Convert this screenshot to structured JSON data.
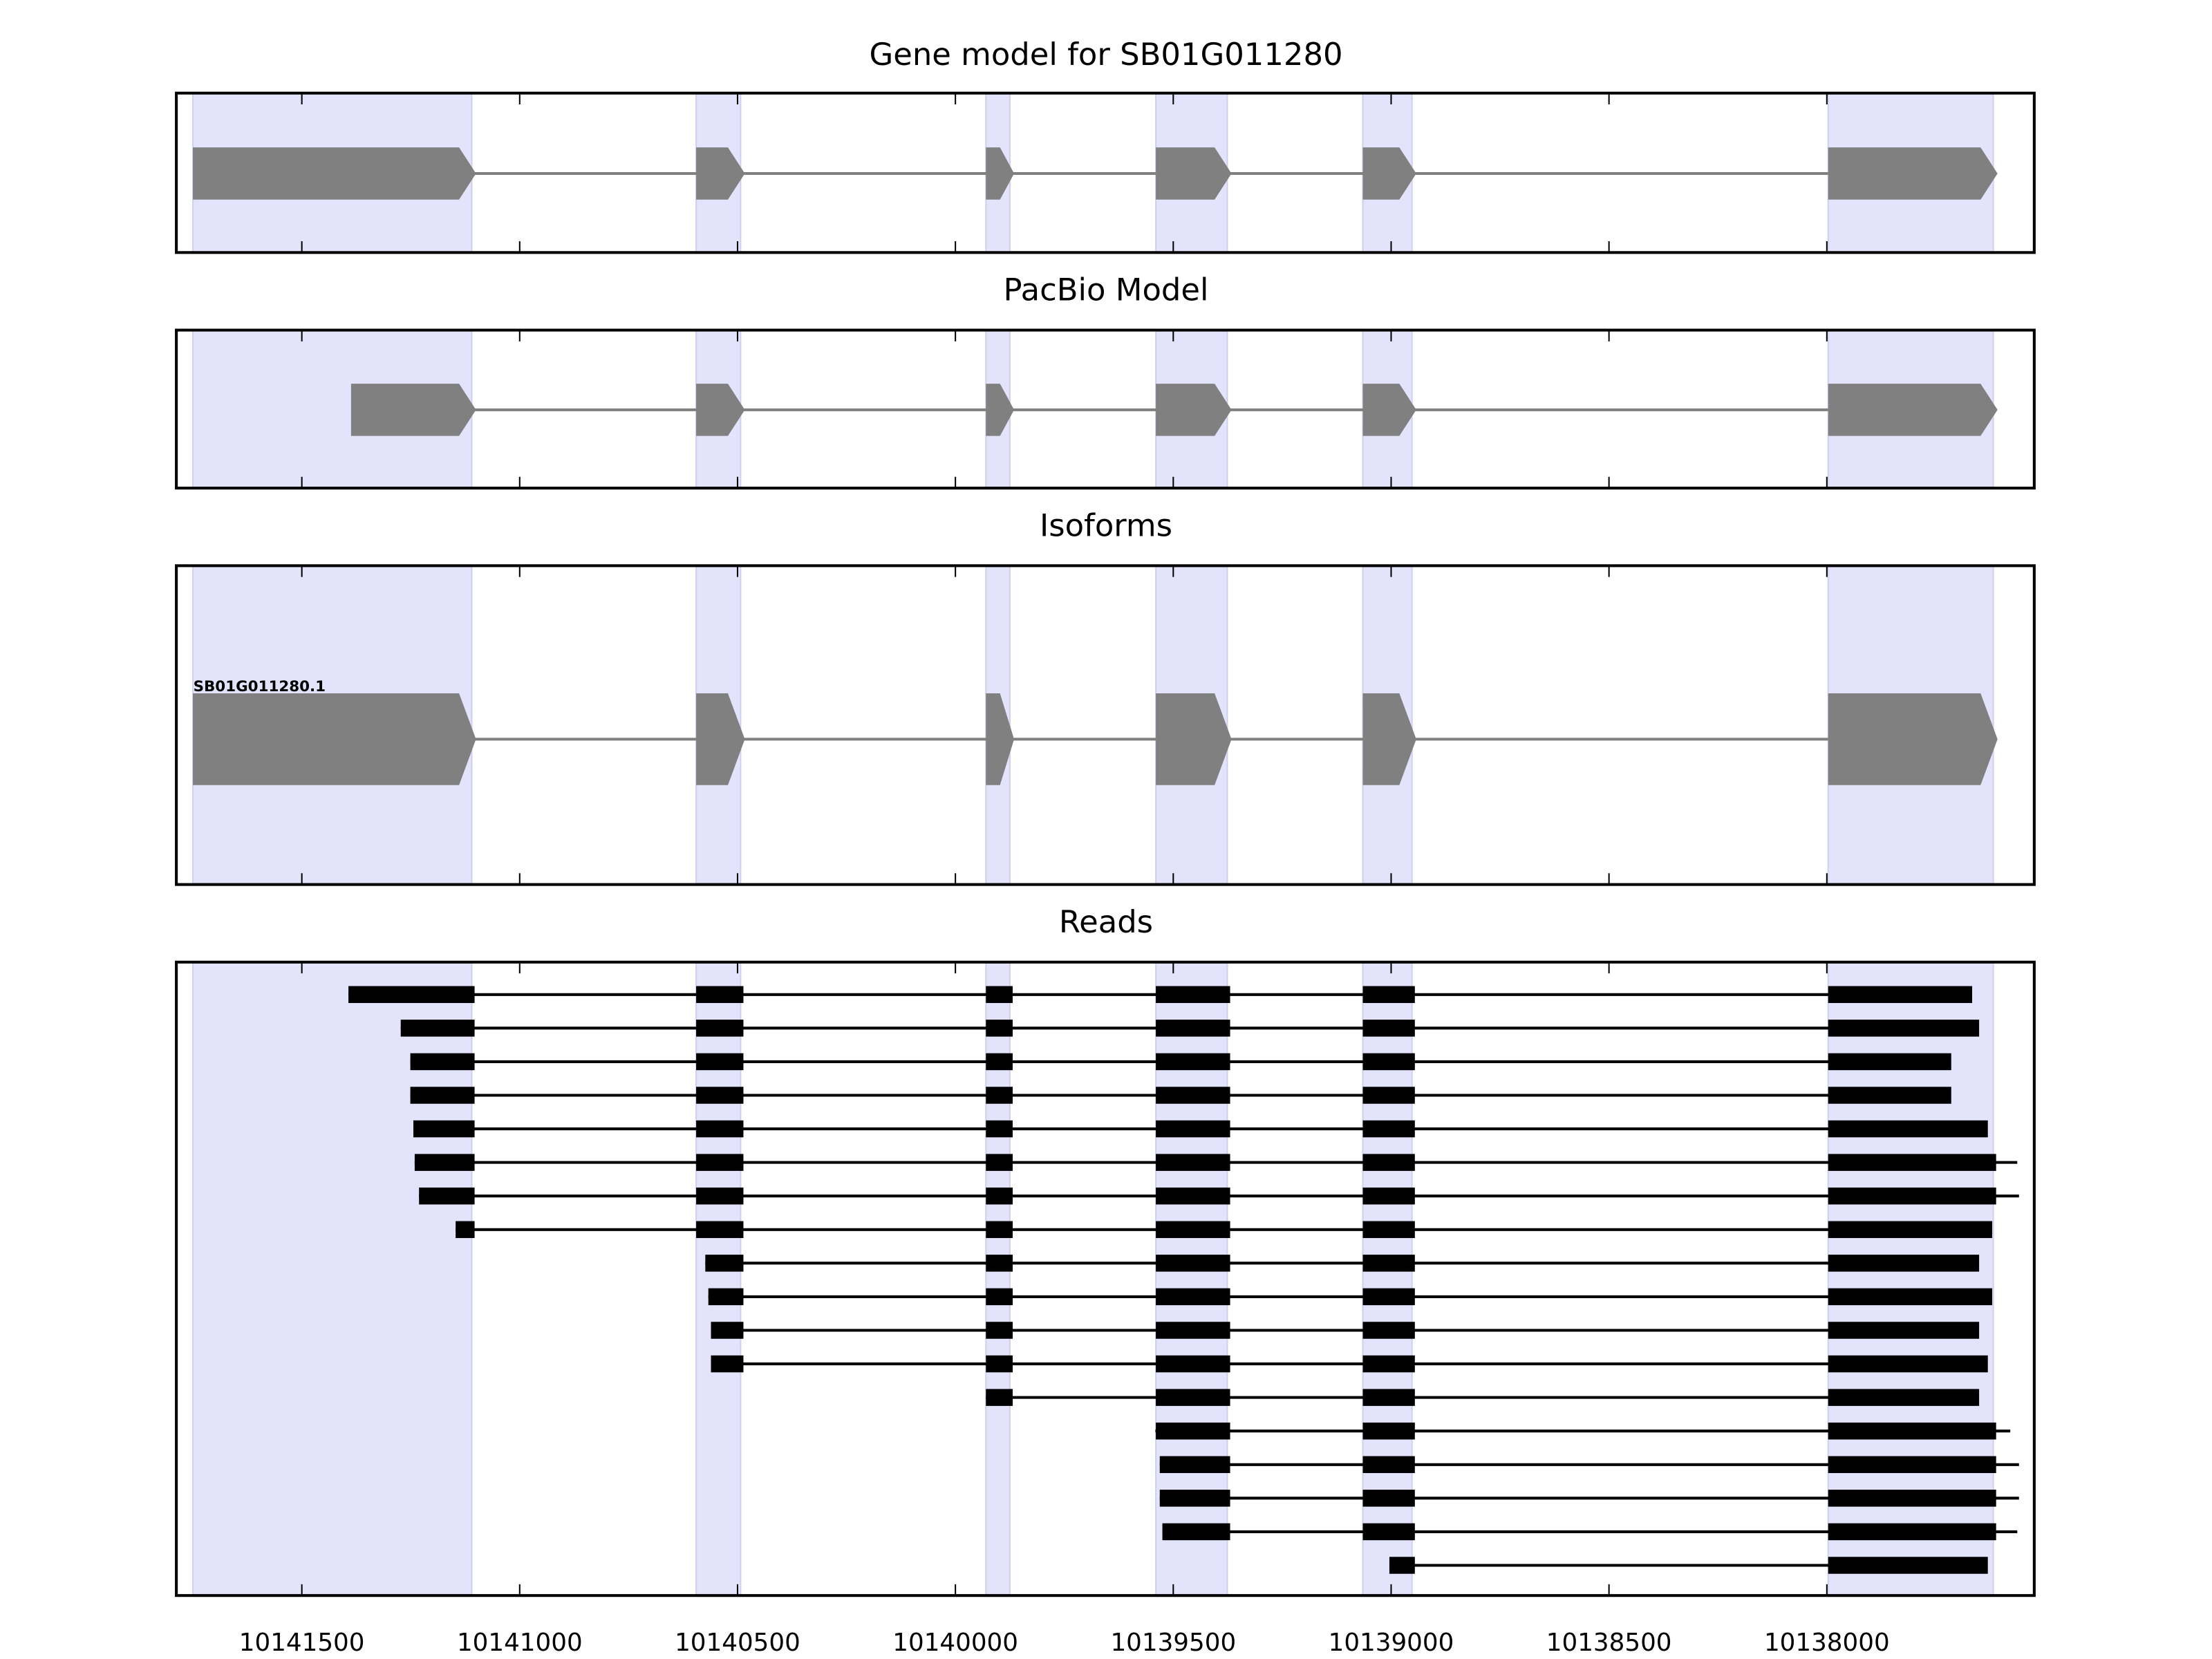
{
  "chart_data": {
    "type": "gene-structure",
    "xlim": [
      10141788,
      10137524
    ],
    "x_ticks": [
      10141500,
      10141000,
      10140500,
      10140000,
      10139500,
      10139000,
      10138500,
      10138000
    ],
    "x_tick_labels": [
      "10141500",
      "10141000",
      "10140500",
      "10140000",
      "10139500",
      "10139000",
      "10138500",
      "10138000"
    ],
    "exon_shading": [
      [
        10141750,
        10141110
      ],
      [
        10140595,
        10140493
      ],
      [
        10139930,
        10139875
      ],
      [
        10139540,
        10139376
      ],
      [
        10139065,
        10138952
      ],
      [
        10137997,
        10137618
      ]
    ],
    "colors": {
      "shade": "#e3e3fc",
      "shade_edge": "#d0d0ee",
      "model": "#808080",
      "read": "#000000"
    },
    "panels": [
      {
        "title": "Gene model for SB01G011280",
        "kind": "model",
        "start": 10141755,
        "end": 10137610
      },
      {
        "title": "PacBio Model",
        "kind": "model",
        "start": 10141387,
        "end": 10137553
      },
      {
        "title": "Isoforms",
        "kind": "isoform",
        "label": "SB01G011280.1",
        "start": 10141755,
        "end": 10137559
      },
      {
        "title": "Reads",
        "kind": "reads",
        "reads": [
          [
            10141393,
            10137673
          ],
          [
            10141273,
            10137657
          ],
          [
            10141251,
            10137721
          ],
          [
            10141251,
            10137721
          ],
          [
            10141244,
            10137637
          ],
          [
            10141241,
            10137563
          ],
          [
            10141231,
            10137559
          ],
          [
            10141147,
            10137627
          ],
          [
            10140574,
            10137657
          ],
          [
            10140567,
            10137627
          ],
          [
            10140561,
            10137657
          ],
          [
            10140561,
            10137637
          ],
          [
            10139930,
            10137657
          ],
          [
            10139541,
            10137579
          ],
          [
            10139531,
            10137559
          ],
          [
            10139531,
            10137559
          ],
          [
            10139525,
            10137563
          ],
          [
            10139004,
            10137637
          ]
        ]
      }
    ]
  }
}
